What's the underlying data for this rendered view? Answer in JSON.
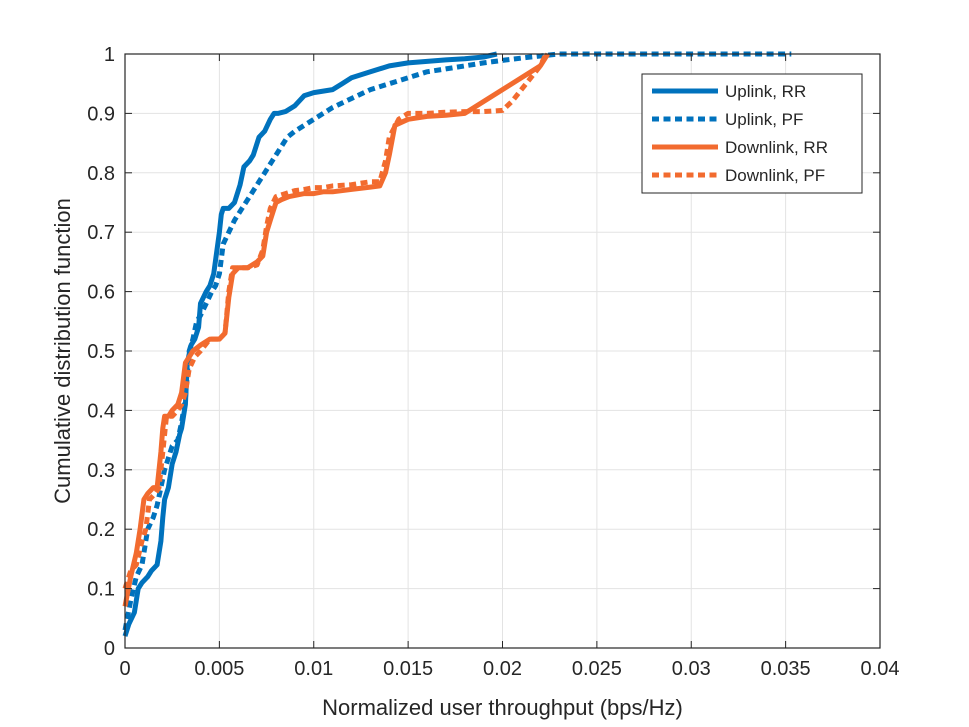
{
  "chart_data": {
    "type": "line",
    "title": "",
    "xlabel": "Normalized user throughput (bps/Hz)",
    "ylabel": "Cumulative distribution function",
    "xlim": [
      0,
      0.04
    ],
    "ylim": [
      0,
      1
    ],
    "xticks": [
      0,
      0.005,
      0.01,
      0.015,
      0.02,
      0.025,
      0.03,
      0.035,
      0.04
    ],
    "xtick_labels": [
      "0",
      "0.005",
      "0.01",
      "0.015",
      "0.02",
      "0.025",
      "0.03",
      "0.035",
      "0.04"
    ],
    "yticks": [
      0,
      0.1,
      0.2,
      0.3,
      0.4,
      0.5,
      0.6,
      0.7,
      0.8,
      0.9,
      1
    ],
    "ytick_labels": [
      "0",
      "0.1",
      "0.2",
      "0.3",
      "0.4",
      "0.5",
      "0.6",
      "0.7",
      "0.8",
      "0.9",
      "1"
    ],
    "grid": true,
    "legend_position": "top-right",
    "series": [
      {
        "name": "Uplink, RR",
        "color": "#0072BD",
        "style": "solid",
        "x": [
          0,
          0.0002,
          0.0005,
          0.0007,
          0.0009,
          0.0012,
          0.0014,
          0.0017,
          0.0019,
          0.002,
          0.0021,
          0.0023,
          0.0025,
          0.0027,
          0.0029,
          0.003,
          0.0032,
          0.0033,
          0.0035,
          0.0037,
          0.0039,
          0.004,
          0.0043,
          0.0045,
          0.0047,
          0.005,
          0.0051,
          0.0052,
          0.0055,
          0.0058,
          0.0061,
          0.0063,
          0.0066,
          0.0068,
          0.0071,
          0.0074,
          0.0077,
          0.0079,
          0.0081,
          0.0085,
          0.009,
          0.0095,
          0.01,
          0.011,
          0.0115,
          0.012,
          0.013,
          0.014,
          0.015,
          0.017,
          0.018,
          0.019,
          0.0197
        ],
        "y": [
          0.02,
          0.04,
          0.06,
          0.1,
          0.11,
          0.12,
          0.13,
          0.14,
          0.18,
          0.22,
          0.25,
          0.27,
          0.31,
          0.33,
          0.36,
          0.37,
          0.41,
          0.48,
          0.51,
          0.52,
          0.54,
          0.58,
          0.6,
          0.61,
          0.63,
          0.7,
          0.73,
          0.74,
          0.74,
          0.75,
          0.78,
          0.81,
          0.82,
          0.83,
          0.86,
          0.87,
          0.89,
          0.9,
          0.9,
          0.903,
          0.913,
          0.93,
          0.935,
          0.94,
          0.95,
          0.96,
          0.97,
          0.98,
          0.985,
          0.99,
          0.992,
          0.995,
          1.0
        ]
      },
      {
        "name": "Uplink, PF",
        "color": "#0072BD",
        "style": "dotted",
        "x": [
          0,
          0.0003,
          0.0006,
          0.0009,
          0.0012,
          0.0015,
          0.0017,
          0.0019,
          0.0021,
          0.0023,
          0.0025,
          0.0028,
          0.003,
          0.0032,
          0.0034,
          0.0036,
          0.0038,
          0.004,
          0.0043,
          0.0046,
          0.0048,
          0.005,
          0.0052,
          0.0055,
          0.0058,
          0.0062,
          0.0066,
          0.007,
          0.0074,
          0.0078,
          0.0082,
          0.0086,
          0.009,
          0.0095,
          0.01,
          0.0105,
          0.011,
          0.012,
          0.013,
          0.014,
          0.015,
          0.016,
          0.017,
          0.018,
          0.019,
          0.0202,
          0.0215,
          0.023,
          0.025,
          0.028,
          0.031,
          0.0335,
          0.0353
        ],
        "y": [
          0.03,
          0.08,
          0.12,
          0.14,
          0.2,
          0.22,
          0.24,
          0.27,
          0.3,
          0.32,
          0.34,
          0.35,
          0.38,
          0.42,
          0.5,
          0.52,
          0.55,
          0.56,
          0.58,
          0.6,
          0.61,
          0.63,
          0.68,
          0.7,
          0.72,
          0.74,
          0.76,
          0.78,
          0.8,
          0.82,
          0.84,
          0.86,
          0.87,
          0.88,
          0.89,
          0.9,
          0.91,
          0.925,
          0.94,
          0.95,
          0.96,
          0.97,
          0.975,
          0.98,
          0.985,
          0.99,
          0.995,
          1.0,
          1.0,
          1.0,
          1.0,
          1.0,
          1.0
        ]
      },
      {
        "name": "Downlink, RR",
        "color": "#F26B2F",
        "style": "solid",
        "x": [
          0,
          0.0003,
          0.0006,
          0.0008,
          0.001,
          0.0012,
          0.0015,
          0.0017,
          0.0019,
          0.002,
          0.0021,
          0.0023,
          0.0025,
          0.0028,
          0.003,
          0.0032,
          0.0034,
          0.0036,
          0.004,
          0.0045,
          0.005,
          0.0053,
          0.0055,
          0.0057,
          0.006,
          0.0065,
          0.007,
          0.0073,
          0.0075,
          0.0077,
          0.0079,
          0.008,
          0.0083,
          0.0087,
          0.009,
          0.0095,
          0.01,
          0.0105,
          0.011,
          0.012,
          0.013,
          0.0135,
          0.0138,
          0.014,
          0.0143,
          0.015,
          0.016,
          0.017,
          0.018,
          0.019,
          0.02,
          0.021,
          0.022,
          0.0224
        ],
        "y": [
          0.07,
          0.12,
          0.16,
          0.2,
          0.25,
          0.26,
          0.27,
          0.27,
          0.33,
          0.37,
          0.39,
          0.39,
          0.4,
          0.41,
          0.43,
          0.48,
          0.49,
          0.5,
          0.51,
          0.52,
          0.52,
          0.53,
          0.59,
          0.63,
          0.64,
          0.64,
          0.65,
          0.66,
          0.7,
          0.72,
          0.74,
          0.75,
          0.755,
          0.76,
          0.762,
          0.765,
          0.765,
          0.768,
          0.768,
          0.772,
          0.776,
          0.778,
          0.8,
          0.83,
          0.88,
          0.89,
          0.895,
          0.897,
          0.9,
          0.92,
          0.94,
          0.96,
          0.98,
          1.0
        ]
      },
      {
        "name": "Downlink, PF",
        "color": "#F26B2F",
        "style": "dotted",
        "x": [
          0,
          0.0003,
          0.0006,
          0.0009,
          0.0011,
          0.0013,
          0.0016,
          0.0018,
          0.002,
          0.0022,
          0.0025,
          0.0028,
          0.003,
          0.0032,
          0.0034,
          0.0037,
          0.004,
          0.0045,
          0.005,
          0.0053,
          0.0055,
          0.0057,
          0.006,
          0.0065,
          0.007,
          0.0073,
          0.0075,
          0.0077,
          0.008,
          0.0085,
          0.009,
          0.0095,
          0.01,
          0.0105,
          0.011,
          0.012,
          0.013,
          0.0135,
          0.0138,
          0.014,
          0.0145,
          0.015,
          0.016,
          0.017,
          0.018,
          0.019,
          0.02,
          0.0205,
          0.021,
          0.0215,
          0.022,
          0.0223
        ],
        "y": [
          0.1,
          0.13,
          0.14,
          0.18,
          0.2,
          0.25,
          0.26,
          0.27,
          0.33,
          0.39,
          0.39,
          0.4,
          0.41,
          0.43,
          0.47,
          0.49,
          0.5,
          0.52,
          0.52,
          0.53,
          0.6,
          0.64,
          0.64,
          0.64,
          0.645,
          0.67,
          0.71,
          0.74,
          0.76,
          0.765,
          0.77,
          0.772,
          0.775,
          0.775,
          0.778,
          0.78,
          0.785,
          0.785,
          0.82,
          0.86,
          0.89,
          0.9,
          0.9,
          0.902,
          0.903,
          0.903,
          0.905,
          0.92,
          0.94,
          0.96,
          0.98,
          1.0
        ]
      }
    ]
  }
}
